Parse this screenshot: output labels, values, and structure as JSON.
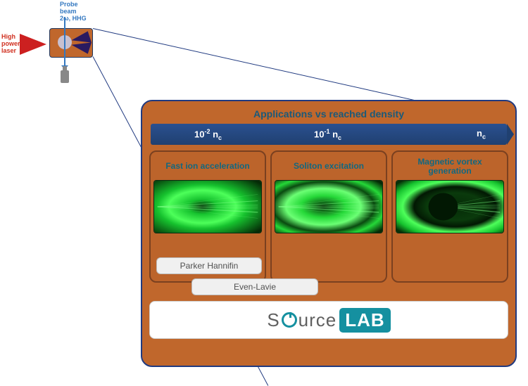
{
  "schematic": {
    "probe_label": "Probe\nbeam\n2ω, HHG",
    "laser_label": "High\npower\nlaser",
    "colors": {
      "laser": "#cc2020",
      "probe": "#3478c0",
      "target_box": "#c0672c",
      "cone": "#2a1a60",
      "outline": "#203a80"
    }
  },
  "main": {
    "title": "Applications vs reached density",
    "density_bar": {
      "bg_gradient": [
        "#2a5090",
        "#204070"
      ],
      "ticks": [
        {
          "mantissa": "10",
          "exp": "-2",
          "suffix": " n",
          "sub": "c"
        },
        {
          "mantissa": "10",
          "exp": "-1",
          "suffix": " n",
          "sub": "c"
        },
        {
          "mantissa": "n",
          "exp": "",
          "suffix": "",
          "sub": "c"
        }
      ]
    },
    "panels": [
      {
        "title": "Fast ion acceleration",
        "gradient_id": "g1",
        "stops": [
          [
            "0%",
            "#052b07"
          ],
          [
            "20%",
            "#16c22e"
          ],
          [
            "45%",
            "#4dff5a"
          ],
          [
            "60%",
            "#16c22e"
          ],
          [
            "100%",
            "#052b07"
          ]
        ]
      },
      {
        "title": "Soliton excitation",
        "gradient_id": "g2",
        "stops": [
          [
            "0%",
            "#052b07"
          ],
          [
            "30%",
            "#25d838"
          ],
          [
            "50%",
            "#6bff74"
          ],
          [
            "68%",
            "#0a4a10"
          ],
          [
            "82%",
            "#25d838"
          ],
          [
            "100%",
            "#052b07"
          ]
        ]
      },
      {
        "title": "Magnetic vortex generation",
        "gradient_id": "g3",
        "stops": [
          [
            "0%",
            "#052b07"
          ],
          [
            "38%",
            "#0a3a0c"
          ],
          [
            "55%",
            "#021803"
          ],
          [
            "70%",
            "#4dff5a"
          ],
          [
            "85%",
            "#16c22e"
          ],
          [
            "100%",
            "#063008"
          ]
        ]
      }
    ],
    "tags": [
      "Parker Hannifin",
      "Even-Lavie"
    ],
    "logo": {
      "pre": "S",
      "mid": "urce",
      "lab": "LAB",
      "accent": "#1590a0"
    },
    "panel_bg": "#c0672c",
    "panel_border": "#7a4020",
    "title_color": "#1a5a7a",
    "app_title_color": "#126880"
  }
}
